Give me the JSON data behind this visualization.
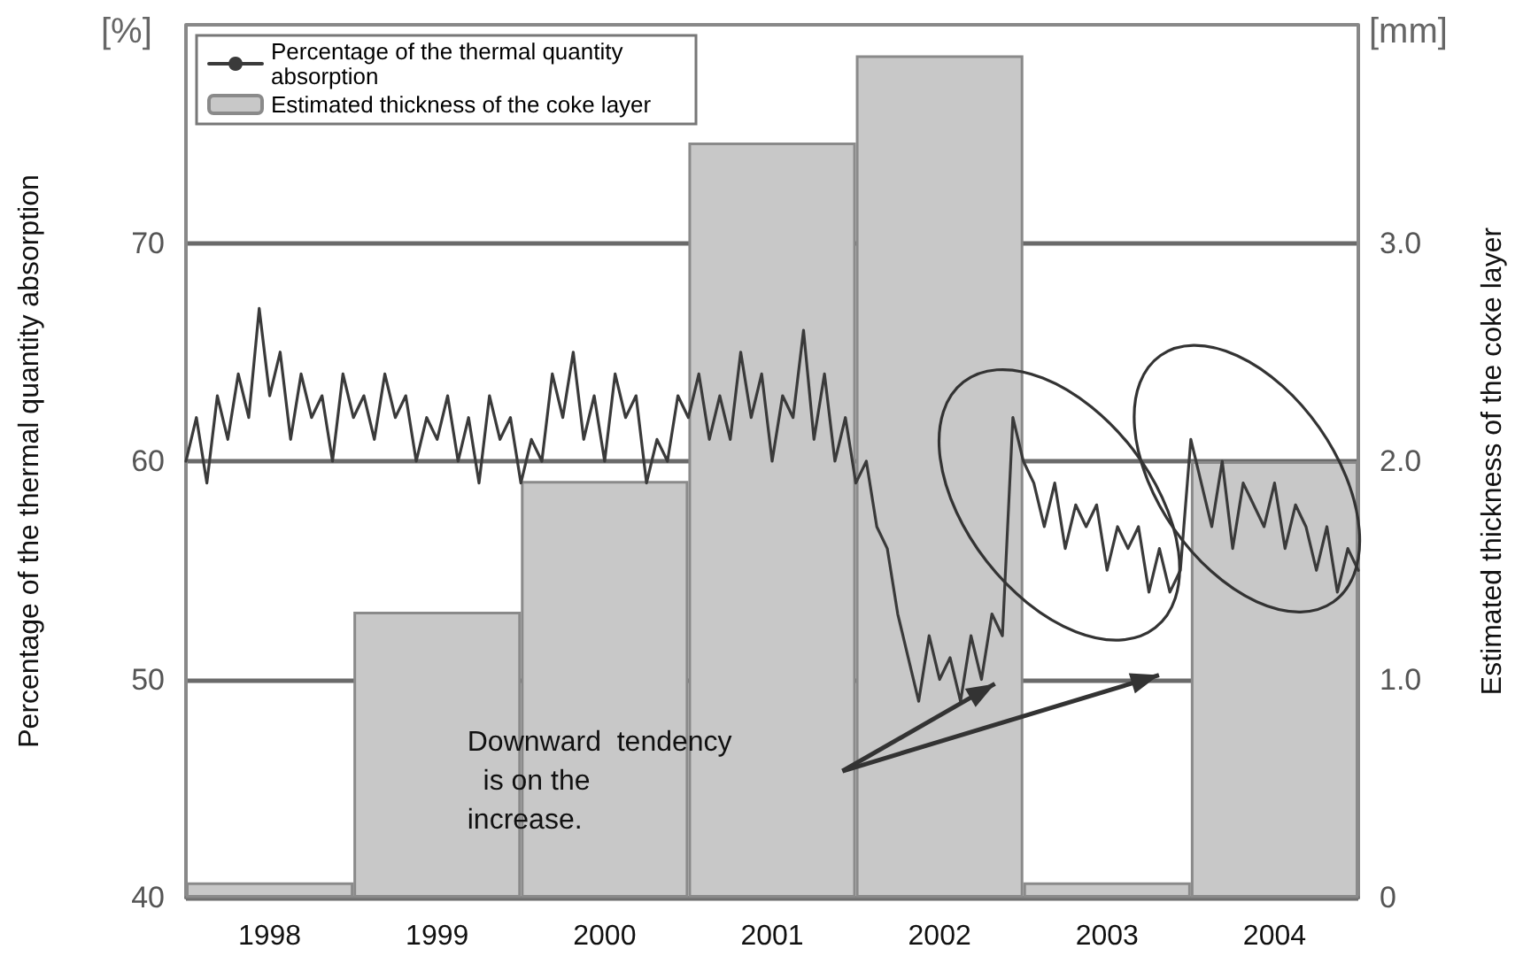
{
  "chart_data": {
    "type": "bar",
    "ylabel": "Percentage of the thermal quantity absorption",
    "y2label": "Estimated thickness of the coke layer",
    "annotations": [
      "[%]",
      "[mm]",
      "Downward  tendency  is on the increase."
    ],
    "xlim": [
      1998,
      2005
    ],
    "xticks": [
      {
        "value": 1998.5,
        "label": "1998"
      },
      {
        "value": 1999.5,
        "label": "1999"
      },
      {
        "value": 2000.5,
        "label": "2000"
      },
      {
        "value": 2001.5,
        "label": "2001"
      },
      {
        "value": 2002.5,
        "label": "2002"
      },
      {
        "value": 2003.5,
        "label": "2003"
      },
      {
        "value": 2004.5,
        "label": "2004"
      }
    ],
    "ylim": [
      40,
      80
    ],
    "yticks": [
      40,
      50,
      60,
      70
    ],
    "y2lim": [
      0,
      4
    ],
    "y2ticks": [
      {
        "value": 0,
        "label": "0"
      },
      {
        "value": 1,
        "label": "1.0"
      },
      {
        "value": 2,
        "label": "2.0"
      },
      {
        "value": 3,
        "label": "3.0"
      }
    ],
    "grid": "y",
    "legend": "top left",
    "marker": "none",
    "line_style": "solid",
    "series": [
      {
        "name": "Percentage of the thermal quantity absorption",
        "type": "line",
        "color": "#3a3a3a",
        "x": [
          1998,
          1998.0625,
          1998.125,
          1998.1875,
          1998.25,
          1998.3125,
          1998.375,
          1998.4375,
          1998.5,
          1998.5625,
          1998.625,
          1998.6875,
          1998.75,
          1998.8125,
          1998.875,
          1998.9375,
          1999,
          1999.0625,
          1999.125,
          1999.1875,
          1999.25,
          1999.3125,
          1999.375,
          1999.4375,
          1999.5,
          1999.5625,
          1999.625,
          1999.6875,
          1999.75,
          1999.8125,
          1999.875,
          1999.9375,
          2000,
          2000.0625,
          2000.125,
          2000.1875,
          2000.25,
          2000.3125,
          2000.375,
          2000.4375,
          2000.5,
          2000.5625,
          2000.625,
          2000.6875,
          2000.75,
          2000.8125,
          2000.875,
          2000.9375,
          2001,
          2001.0625,
          2001.125,
          2001.1875,
          2001.25,
          2001.3125,
          2001.375,
          2001.4375,
          2001.5,
          2001.5625,
          2001.625,
          2001.6875,
          2001.75,
          2001.8125,
          2001.875,
          2001.9375,
          2002,
          2002.0625,
          2002.125,
          2002.1875,
          2002.25,
          2002.3125,
          2002.375,
          2002.4375,
          2002.5,
          2002.5625,
          2002.625,
          2002.6875,
          2002.75,
          2002.8125,
          2002.875,
          2002.9375,
          2003,
          2003.0625,
          2003.125,
          2003.1875,
          2003.25,
          2003.3125,
          2003.375,
          2003.4375,
          2003.5,
          2003.5625,
          2003.625,
          2003.6875,
          2003.75,
          2003.8125,
          2003.875,
          2003.9375,
          2004,
          2004.0625,
          2004.125,
          2004.1875,
          2004.25,
          2004.3125,
          2004.375,
          2004.4375,
          2004.5,
          2004.5625,
          2004.625,
          2004.6875,
          2004.75,
          2004.8125,
          2004.875,
          2004.9375,
          2005
        ],
        "values": [
          60,
          62,
          59,
          63,
          61,
          64,
          62,
          67,
          63,
          65,
          61,
          64,
          62,
          63,
          60,
          64,
          62,
          63,
          61,
          64,
          62,
          63,
          60,
          62,
          61,
          63,
          60,
          62,
          59,
          63,
          61,
          62,
          59,
          61,
          60,
          64,
          62,
          65,
          61,
          63,
          60,
          64,
          62,
          63,
          59,
          61,
          60,
          63,
          62,
          64,
          61,
          63,
          61,
          65,
          62,
          64,
          60,
          63,
          62,
          66,
          61,
          64,
          60,
          62,
          59,
          60,
          57,
          56,
          53,
          51,
          49,
          52,
          50,
          51,
          49,
          52,
          50,
          53,
          52,
          62,
          60,
          59,
          57,
          59,
          56,
          58,
          57,
          58,
          55,
          57,
          56,
          57,
          54,
          56,
          54,
          55,
          61,
          59,
          57,
          60,
          56,
          59,
          58,
          57,
          59,
          56,
          58,
          57,
          55,
          57,
          54,
          56,
          55
        ]
      },
      {
        "name": "Estimated thickness of the coke layer",
        "axis": "y2",
        "color": "#c8c8c8",
        "x": [
          1998.5,
          1999.5,
          2000.5,
          2001.5,
          2002.5,
          2003.5,
          2004.5
        ],
        "values": [
          0.07,
          1.31,
          1.91,
          3.46,
          3.86,
          0.07,
          2.0
        ]
      }
    ]
  }
}
